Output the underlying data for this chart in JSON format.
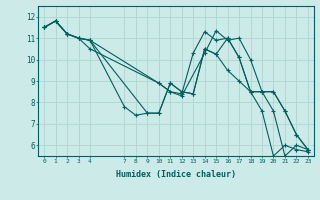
{
  "xlabel": "Humidex (Indice chaleur)",
  "ylabel": "",
  "bg_color": "#cceae8",
  "line_color": "#006060",
  "grid_color": "#aed4d2",
  "xlim": [
    -0.5,
    23.5
  ],
  "ylim": [
    5.5,
    12.5
  ],
  "yticks": [
    6,
    7,
    8,
    9,
    10,
    11,
    12
  ],
  "xticks": [
    0,
    1,
    2,
    3,
    4,
    7,
    8,
    9,
    10,
    11,
    12,
    13,
    14,
    15,
    16,
    17,
    18,
    19,
    20,
    21,
    22,
    23
  ],
  "series": [
    {
      "x": [
        0,
        1,
        2,
        3,
        4,
        10,
        11,
        12,
        13,
        14,
        15,
        16,
        17,
        18,
        19,
        20,
        21,
        22,
        23
      ],
      "y": [
        11.5,
        11.8,
        11.2,
        11.0,
        10.9,
        8.9,
        8.5,
        8.4,
        10.3,
        11.3,
        10.9,
        11.0,
        10.1,
        8.5,
        7.6,
        5.5,
        6.0,
        5.8,
        5.7
      ]
    },
    {
      "x": [
        0,
        1,
        2,
        3,
        4,
        7,
        8,
        9,
        10,
        11,
        12,
        13,
        14,
        15,
        16,
        17,
        18,
        19,
        20,
        21,
        22,
        23
      ],
      "y": [
        11.5,
        11.8,
        11.2,
        11.0,
        10.9,
        7.8,
        7.4,
        7.5,
        7.5,
        8.9,
        8.5,
        8.4,
        10.5,
        10.25,
        9.5,
        9.0,
        8.5,
        8.5,
        8.5,
        7.6,
        6.5,
        5.8
      ]
    },
    {
      "x": [
        0,
        1,
        2,
        3,
        4,
        9,
        10,
        11,
        12,
        13,
        14,
        15,
        16,
        17,
        18,
        19,
        20,
        21,
        22,
        23
      ],
      "y": [
        11.5,
        11.8,
        11.2,
        11.0,
        10.9,
        7.5,
        7.5,
        8.9,
        8.5,
        8.4,
        10.5,
        10.25,
        11.0,
        10.1,
        8.5,
        8.5,
        8.5,
        7.6,
        6.5,
        5.8
      ]
    },
    {
      "x": [
        0,
        1,
        2,
        3,
        4,
        10,
        11,
        12,
        14,
        15,
        16,
        17,
        18,
        19,
        20,
        21,
        22,
        23
      ],
      "y": [
        11.5,
        11.8,
        11.2,
        11.0,
        10.5,
        8.9,
        8.5,
        8.3,
        10.3,
        11.35,
        10.9,
        11.0,
        10.0,
        8.5,
        7.6,
        5.5,
        6.0,
        5.8
      ]
    }
  ]
}
